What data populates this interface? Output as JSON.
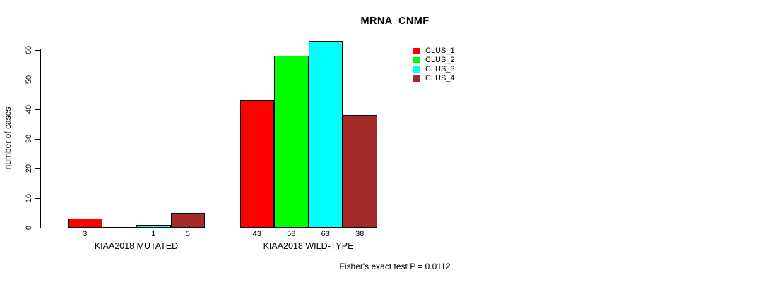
{
  "chart_data": {
    "type": "bar",
    "title": "MRNA_CNMF",
    "ylabel": "number of cases",
    "ylim": [
      0,
      63
    ],
    "yticks": [
      0,
      10,
      20,
      30,
      40,
      50,
      60
    ],
    "grid": false,
    "legend_position": "top-right",
    "categories": [
      "KIAA2018 MUTATED",
      "KIAA2018 WILD-TYPE"
    ],
    "series": [
      {
        "name": "CLUS_1",
        "color": "#ff0000",
        "values": [
          3,
          43
        ]
      },
      {
        "name": "CLUS_2",
        "color": "#00ff00",
        "values": [
          0,
          58
        ]
      },
      {
        "name": "CLUS_3",
        "color": "#00ffff",
        "values": [
          1,
          63
        ]
      },
      {
        "name": "CLUS_4",
        "color": "#a52a2a",
        "values": [
          5,
          38
        ]
      }
    ],
    "bar_value_labels": [
      [
        "3",
        "",
        "1",
        "5"
      ],
      [
        "43",
        "58",
        "63",
        "38"
      ]
    ],
    "annotation": "Fisher's exact test P = 0.0112"
  }
}
